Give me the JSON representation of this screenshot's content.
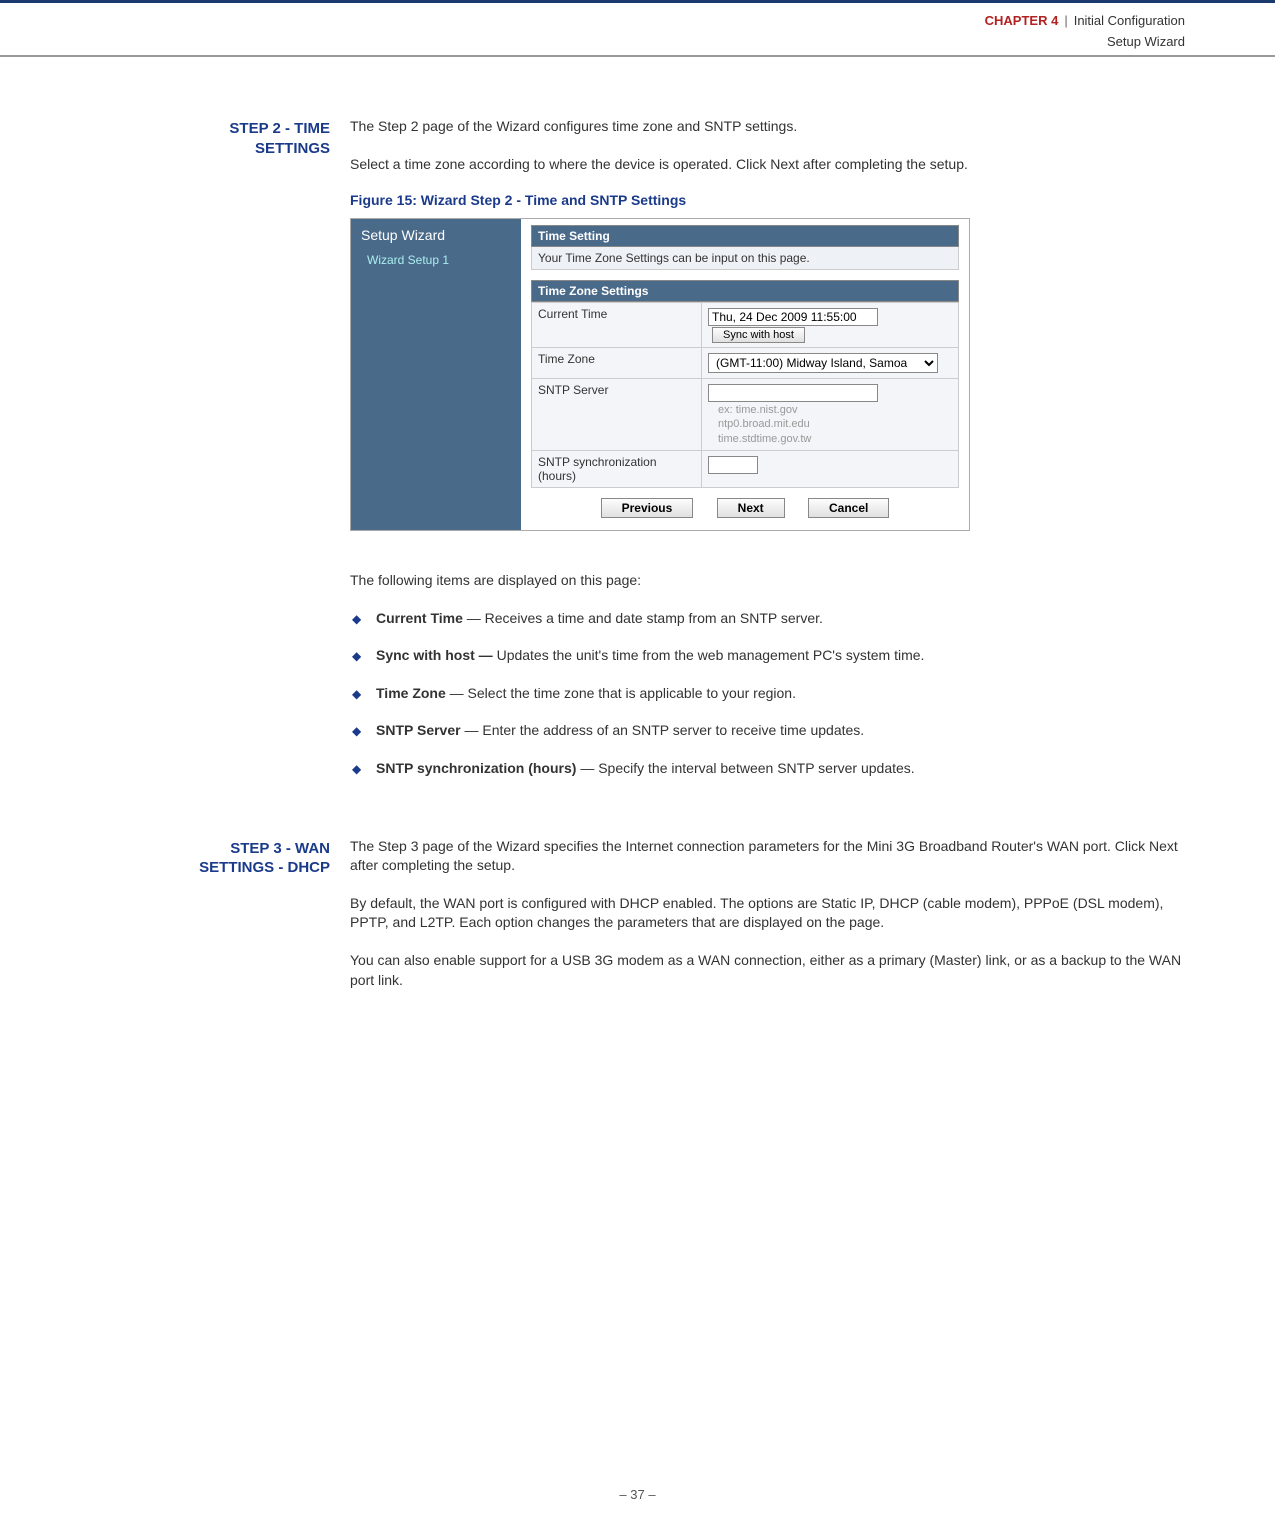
{
  "header": {
    "chapter_label": "CHAPTER 4",
    "separator": "|",
    "chapter_title": "Initial Configuration",
    "subtitle": "Setup Wizard"
  },
  "step2": {
    "label_line1": "STEP 2 - TIME",
    "label_line2": "SETTINGS",
    "intro": "The Step 2 page of the Wizard configures time zone and SNTP settings.",
    "para2": "Select a time zone according to where the device is operated. Click Next after completing the setup.",
    "figure_caption": "Figure 15:  Wizard Step 2 - Time and SNTP Settings",
    "screenshot": {
      "sidebar_title": "Setup Wizard",
      "sidebar_item": "Wizard Setup 1",
      "panel1_head": "Time Setting",
      "panel1_sub": "Your Time Zone Settings can be input on this page.",
      "panel2_head": "Time Zone Settings",
      "rows": {
        "current_time_label": "Current Time",
        "current_time_value": "Thu, 24 Dec 2009 11:55:00",
        "sync_button": "Sync with host",
        "timezone_label": "Time Zone",
        "timezone_value": "(GMT-11:00) Midway Island, Samoa",
        "sntp_label": "SNTP Server",
        "sntp_value": "",
        "sntp_hint1": "ex: time.nist.gov",
        "sntp_hint2": "ntp0.broad.mit.edu",
        "sntp_hint3": "time.stdtime.gov.tw",
        "sync_hours_label": "SNTP synchronization (hours)",
        "sync_hours_value": ""
      },
      "buttons": {
        "prev": "Previous",
        "next": "Next",
        "cancel": "Cancel"
      }
    },
    "items_intro": "The following items are displayed on this page:",
    "bullets": [
      {
        "term": "Current Time",
        "sep": " — ",
        "text": "Receives a time and date stamp from an SNTP server."
      },
      {
        "term": "Sync with host —",
        "sep": " ",
        "text": "Updates the unit's time from the web management PC's system time."
      },
      {
        "term": "Time Zone",
        "sep": " —  ",
        "text": "Select the time zone that is applicable to your region."
      },
      {
        "term": "SNTP Server",
        "sep": " — ",
        "text": "Enter the address of an SNTP server to receive time updates."
      },
      {
        "term": "SNTP synchronization (hours)",
        "sep": " — ",
        "text": "Specify the interval between SNTP server updates."
      }
    ]
  },
  "step3": {
    "label_line1": "STEP 3 - WAN",
    "label_line2": "SETTINGS - DHCP",
    "para1": "The Step 3 page of the Wizard specifies the Internet connection parameters for the Mini 3G Broadband Router's WAN port. Click Next after completing the setup.",
    "para2": "By default, the WAN port is configured with DHCP enabled. The options are Static IP, DHCP (cable modem), PPPoE (DSL modem), PPTP, and L2TP. Each option changes the parameters that are displayed on the page.",
    "para3": "You can also enable support for a USB 3G modem as a WAN connection, either as a primary (Master) link, or as a backup to the WAN port link."
  },
  "footer": {
    "page": "–  37  –"
  }
}
